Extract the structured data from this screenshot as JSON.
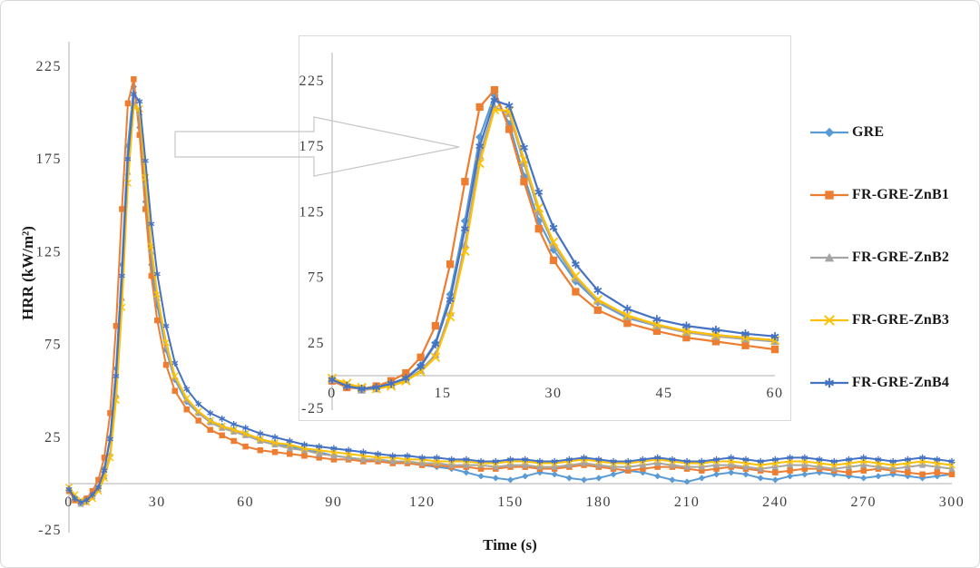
{
  "figure": {
    "background": "#FFFFFF",
    "border_color": "#D8D8D8",
    "axis_line_color": "#BFBFBF",
    "tick_label_color": "#3F3F3F",
    "callout_outline_color": "#C6C6C6"
  },
  "chart_data": {
    "type": "line",
    "title": "",
    "xlabel": "Time (s)",
    "ylabel": "HRR (kW/m²)",
    "xlim": [
      0,
      300
    ],
    "ylim": [
      -25,
      235
    ],
    "x_ticks": [
      0,
      30,
      60,
      90,
      120,
      150,
      180,
      210,
      240,
      270,
      300
    ],
    "y_ticks": [
      -25,
      25,
      75,
      125,
      175,
      225
    ],
    "grid": false,
    "legend_position": "right",
    "x": [
      0,
      2,
      4,
      6,
      8,
      10,
      12,
      14,
      16,
      18,
      20,
      22,
      24,
      26,
      28,
      30,
      33,
      36,
      40,
      44,
      48,
      52,
      56,
      60,
      65,
      70,
      75,
      80,
      85,
      90,
      95,
      100,
      105,
      110,
      115,
      120,
      125,
      130,
      135,
      140,
      145,
      150,
      155,
      160,
      165,
      170,
      175,
      180,
      185,
      190,
      195,
      200,
      205,
      210,
      215,
      220,
      225,
      230,
      235,
      240,
      245,
      250,
      255,
      260,
      265,
      270,
      275,
      280,
      285,
      290,
      295,
      300
    ],
    "series": [
      {
        "name": "GRE",
        "color": "#5B9BD5",
        "marker": "diamond",
        "values": [
          -3,
          -8,
          -10,
          -9,
          -6,
          -2,
          8,
          25,
          62,
          118,
          182,
          214,
          192,
          152,
          118,
          96,
          72,
          56,
          44,
          38,
          34,
          31,
          29,
          27,
          24,
          22,
          20,
          18,
          17,
          15,
          14,
          13,
          12,
          12,
          11,
          10,
          9,
          8,
          6,
          4,
          3,
          2,
          4,
          6,
          5,
          3,
          2,
          3,
          5,
          7,
          6,
          4,
          2,
          1,
          3,
          5,
          6,
          5,
          3,
          2,
          4,
          5,
          6,
          5,
          4,
          3,
          4,
          5,
          4,
          3,
          4,
          5
        ]
      },
      {
        "name": "FR-GRE-ZnB1",
        "color": "#ED7D31",
        "marker": "square",
        "values": [
          -4,
          -9,
          -10,
          -8,
          -4,
          2,
          14,
          38,
          85,
          148,
          205,
          218,
          188,
          148,
          112,
          88,
          64,
          50,
          40,
          34,
          29,
          26,
          23,
          20,
          18,
          17,
          16,
          15,
          14,
          13,
          13,
          12,
          12,
          11,
          11,
          10,
          10,
          9,
          9,
          8,
          8,
          9,
          9,
          8,
          8,
          9,
          10,
          9,
          8,
          7,
          8,
          9,
          9,
          8,
          7,
          8,
          9,
          8,
          7,
          6,
          7,
          8,
          8,
          7,
          6,
          7,
          8,
          7,
          6,
          5,
          6,
          5
        ]
      },
      {
        "name": "FR-GRE-ZnB2",
        "color": "#A5A5A5",
        "marker": "triangle",
        "values": [
          -3,
          -7,
          -11,
          -10,
          -7,
          -3,
          4,
          16,
          48,
          100,
          168,
          205,
          200,
          162,
          125,
          100,
          74,
          57,
          45,
          38,
          33,
          30,
          28,
          26,
          23,
          21,
          19,
          18,
          16,
          15,
          14,
          13,
          13,
          12,
          12,
          11,
          11,
          10,
          10,
          10,
          9,
          10,
          10,
          9,
          9,
          10,
          11,
          10,
          9,
          9,
          10,
          11,
          10,
          9,
          9,
          10,
          10,
          9,
          8,
          9,
          10,
          10,
          9,
          8,
          9,
          10,
          9,
          8,
          9,
          10,
          9,
          8
        ]
      },
      {
        "name": "FR-GRE-ZnB3",
        "color": "#FFC000",
        "marker": "x",
        "values": [
          -2,
          -6,
          -9,
          -10,
          -8,
          -4,
          3,
          14,
          45,
          95,
          162,
          203,
          202,
          165,
          128,
          102,
          76,
          58,
          46,
          39,
          34,
          31,
          29,
          27,
          24,
          22,
          21,
          19,
          18,
          17,
          16,
          15,
          14,
          14,
          13,
          13,
          12,
          12,
          12,
          11,
          11,
          12,
          12,
          11,
          11,
          12,
          13,
          12,
          11,
          11,
          12,
          13,
          12,
          11,
          11,
          12,
          12,
          11,
          10,
          11,
          12,
          12,
          11,
          10,
          11,
          12,
          11,
          10,
          11,
          12,
          11,
          10
        ]
      },
      {
        "name": "FR-GRE-ZnB4",
        "color": "#4472C4",
        "marker": "asterisk",
        "values": [
          -3,
          -8,
          -10,
          -9,
          -6,
          -2,
          7,
          24,
          58,
          112,
          175,
          210,
          206,
          174,
          140,
          113,
          85,
          65,
          51,
          43,
          38,
          35,
          32,
          30,
          27,
          25,
          23,
          21,
          20,
          19,
          18,
          17,
          16,
          15,
          15,
          14,
          14,
          13,
          13,
          12,
          12,
          13,
          13,
          12,
          12,
          13,
          14,
          13,
          12,
          12,
          13,
          14,
          13,
          12,
          12,
          13,
          14,
          13,
          12,
          13,
          14,
          14,
          13,
          12,
          13,
          14,
          13,
          12,
          13,
          14,
          13,
          12
        ]
      }
    ],
    "inset": {
      "note": "magnified view of 0-60 s peak region",
      "xlim": [
        0,
        60
      ],
      "ylim": [
        -25,
        235
      ],
      "x_ticks": [
        0,
        15,
        30,
        45,
        60
      ],
      "y_ticks": [
        -25,
        25,
        75,
        125,
        175,
        225
      ]
    }
  }
}
